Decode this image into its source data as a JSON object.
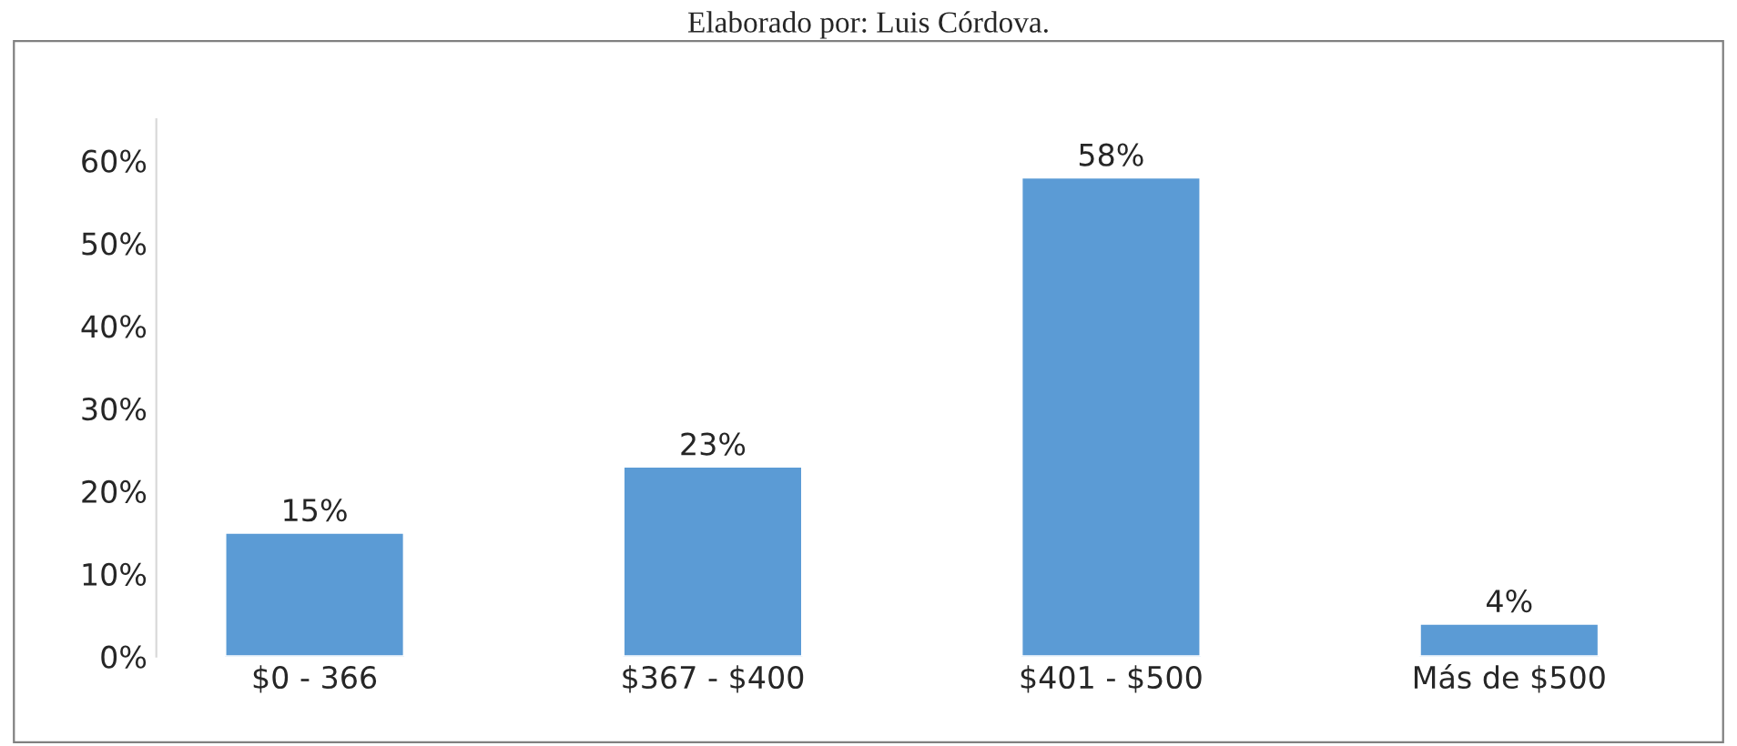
{
  "chart_data": {
    "type": "bar",
    "annotations": [
      "Elaborado por: Luis Córdova."
    ],
    "categories": [
      "$0 - 366",
      "$367 - $400",
      "$401 - $500",
      "Más de $500"
    ],
    "values": [
      15,
      23,
      58,
      4
    ],
    "value_labels": [
      "15%",
      "23%",
      "58%",
      "4%"
    ],
    "color": "#5b9bd5",
    "ylim": [
      0,
      65
    ],
    "yticks": [
      {
        "value": 0,
        "label": "0%"
      },
      {
        "value": 10,
        "label": "10%"
      },
      {
        "value": 20,
        "label": "20%"
      },
      {
        "value": 30,
        "label": "30%"
      },
      {
        "value": 40,
        "label": "40%"
      },
      {
        "value": 50,
        "label": "50%"
      },
      {
        "value": 60,
        "label": "60%"
      }
    ],
    "grid": false,
    "legend": false
  }
}
